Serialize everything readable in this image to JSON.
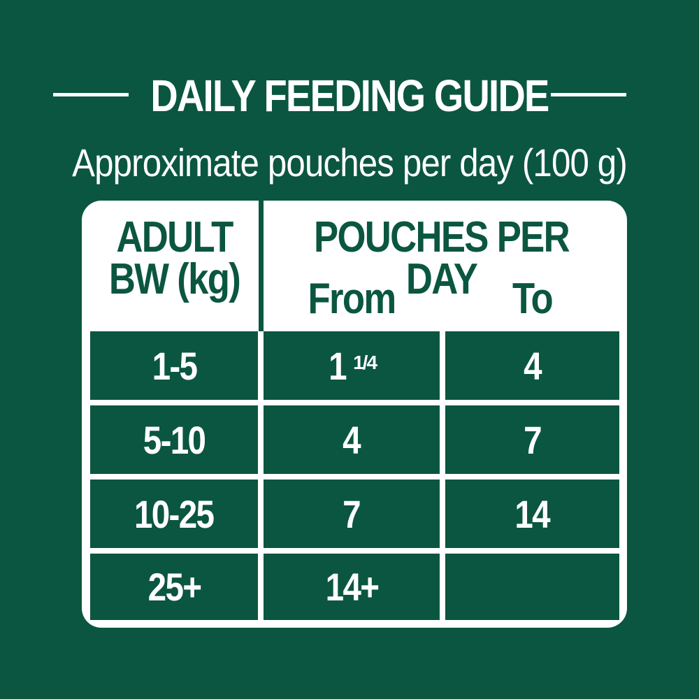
{
  "header": {
    "title": "DAILY FEEDING GUIDE",
    "subtitle": "Approximate pouches per day (100 g)"
  },
  "table": {
    "col1_header_line1": "ADULT",
    "col1_header_line2": "BW (kg)",
    "group_header": "POUCHES PER DAY",
    "col2_header": "From",
    "col3_header": "To",
    "rows": [
      {
        "bw": "1-5",
        "from": "1",
        "from_fraction": "1/4",
        "to": "4"
      },
      {
        "bw": "5-10",
        "from": "4",
        "from_fraction": "",
        "to": "7"
      },
      {
        "bw": "10-25",
        "from": "7",
        "from_fraction": "",
        "to": "14"
      },
      {
        "bw": "25+",
        "from": "14+",
        "from_fraction": "",
        "to": ""
      }
    ]
  },
  "colors": {
    "background": "#0b5640",
    "text": "#ffffff"
  }
}
